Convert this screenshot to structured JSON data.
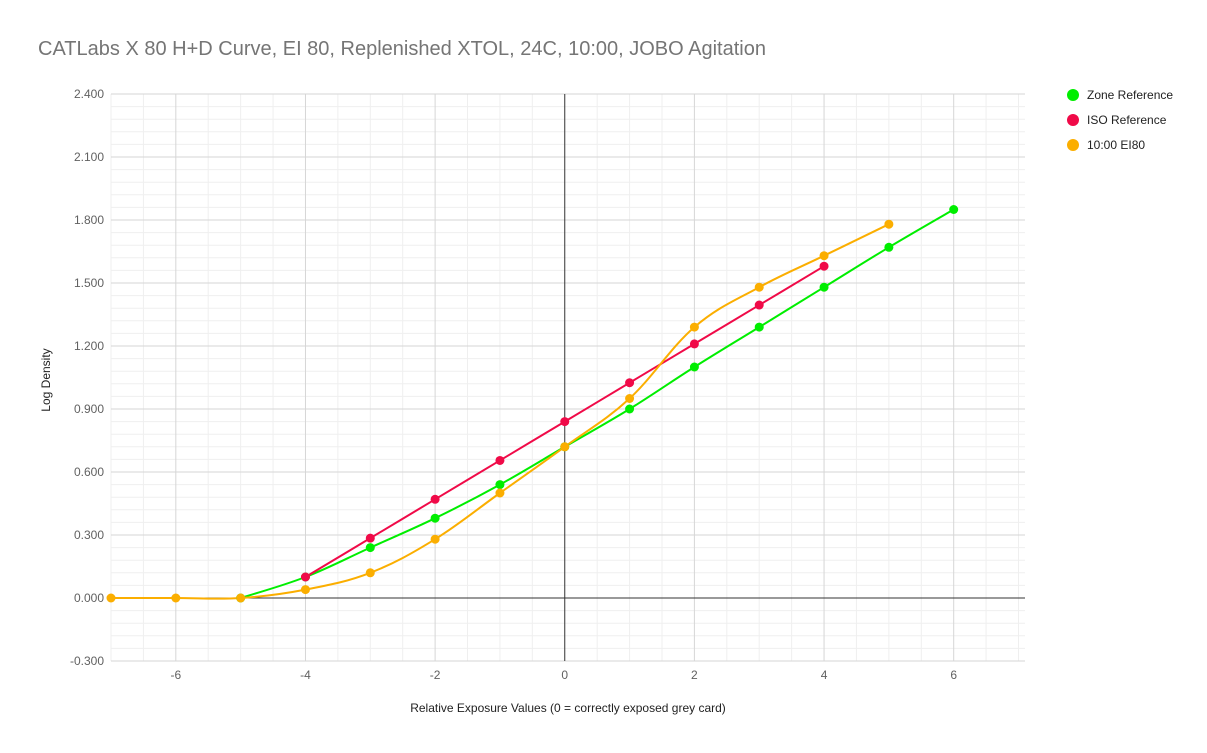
{
  "chart_data": {
    "type": "line",
    "title": "CATLabs X 80 H+D Curve, EI 80, Replenished XTOL, 24C, 10:00, JOBO Agitation",
    "xlabel": "Relative Exposure Values (0 = correctly exposed grey card)",
    "ylabel": "Log Density",
    "xlim": [
      -7,
      7.1
    ],
    "ylim": [
      -0.3,
      2.4
    ],
    "x_ticks": [
      -6,
      -4,
      -2,
      0,
      2,
      4,
      6
    ],
    "x_tick_labels": [
      "-6",
      "-4",
      "-2",
      "0",
      "2",
      "4",
      "6"
    ],
    "y_ticks": [
      -0.3,
      0,
      0.3,
      0.6,
      0.9,
      1.2,
      1.5,
      1.8,
      2.1,
      2.4
    ],
    "y_tick_labels": [
      "-0.300",
      "0.000",
      "0.300",
      "0.600",
      "0.900",
      "1.200",
      "1.500",
      "1.800",
      "2.100",
      "2.400"
    ],
    "grid": true,
    "minor_grid": true,
    "legend_position": "right",
    "series": [
      {
        "name": "Zone Reference",
        "color": "#00ee00",
        "x": [
          -5,
          -4,
          -3,
          -2,
          -1,
          0,
          1,
          2,
          3,
          4,
          5,
          6
        ],
        "y": [
          0.0,
          0.1,
          0.24,
          0.38,
          0.54,
          0.72,
          0.9,
          1.1,
          1.29,
          1.48,
          1.67,
          1.85
        ]
      },
      {
        "name": "ISO Reference",
        "color": "#f00a48",
        "x": [
          -4,
          -3,
          -2,
          -1,
          0,
          1,
          2,
          3,
          4
        ],
        "y": [
          0.1,
          0.285,
          0.47,
          0.655,
          0.84,
          1.025,
          1.21,
          1.395,
          1.58
        ]
      },
      {
        "name": "10:00 EI80",
        "color": "#fbae00",
        "x": [
          -7,
          -6,
          -5,
          -4,
          -3,
          -2,
          -1,
          0,
          1,
          2,
          3,
          4,
          5
        ],
        "y": [
          0.0,
          0.0,
          0.0,
          0.04,
          0.12,
          0.28,
          0.5,
          0.72,
          0.95,
          1.29,
          1.48,
          1.63,
          1.78
        ]
      }
    ]
  }
}
